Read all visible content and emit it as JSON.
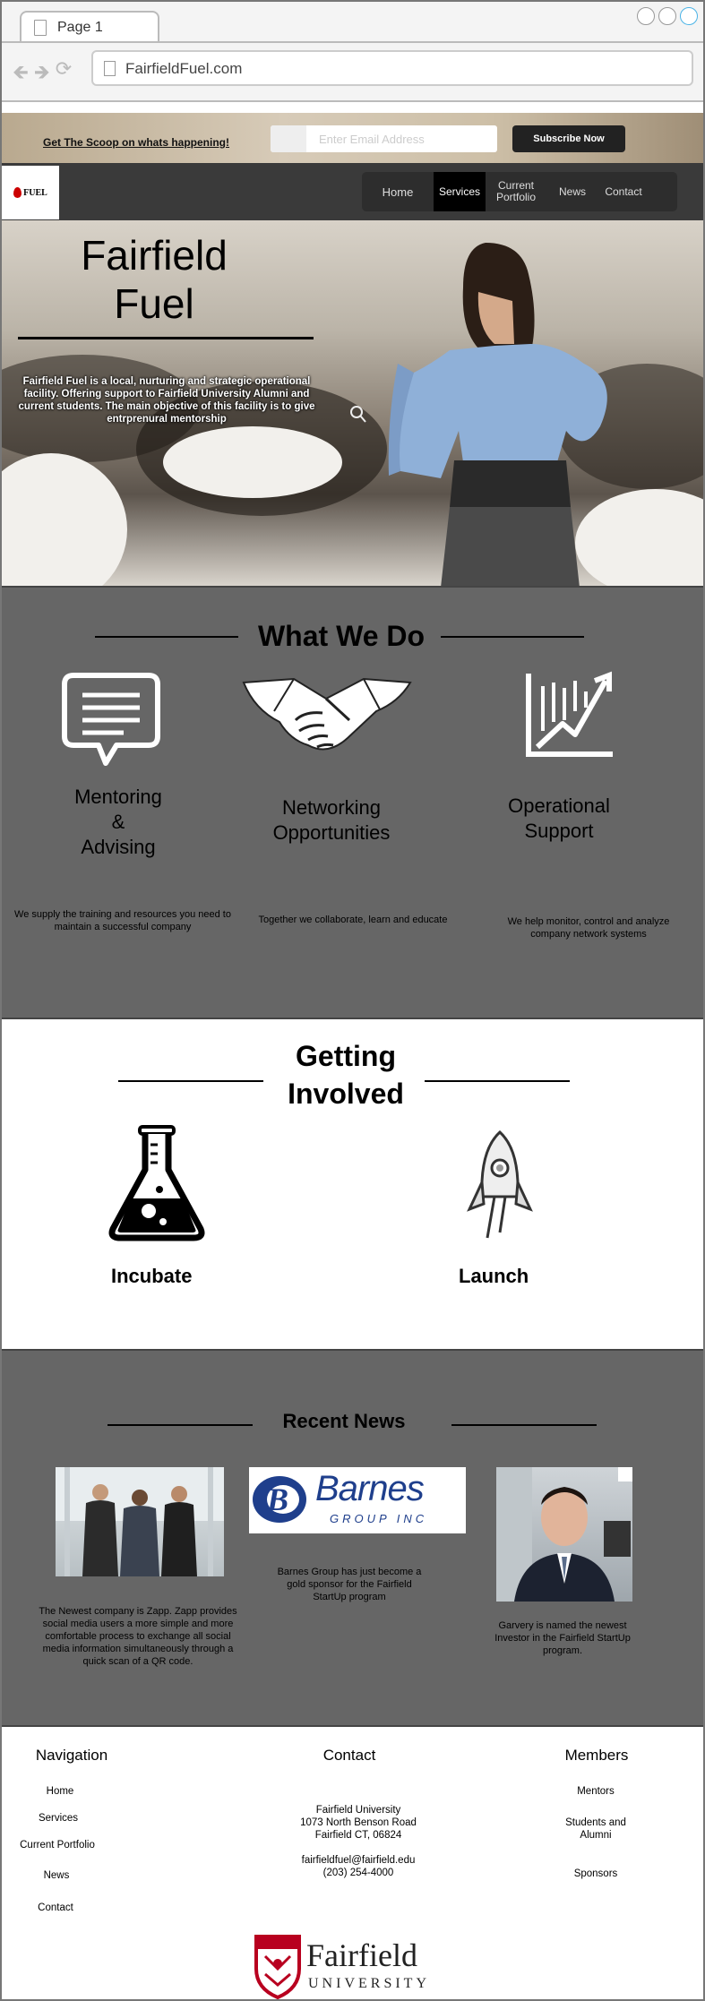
{
  "browser": {
    "tab_label": "Page 1",
    "url": "FairfieldFuel.com"
  },
  "subscribe_bar": {
    "scoop_link": "Get The Scoop on whats happening!",
    "email_placeholder": "Enter Email Address",
    "subscribe_button": "Subscribe Now"
  },
  "navbar": {
    "logo_text": "FUEL",
    "items": [
      {
        "label": "Home"
      },
      {
        "label": "Services"
      },
      {
        "label": "Current Portfolio"
      },
      {
        "label": "News"
      },
      {
        "label": "Contact"
      }
    ],
    "active": "Services"
  },
  "hero": {
    "title_line1": "Fairfield",
    "title_line2": "Fuel",
    "description": "Fairfield Fuel is a local, nurturing and strategic operational facility. Offering support to Fairfield University Alumni and current students. The main objective of this facility is to give entrprenural mentorship"
  },
  "what_we_do": {
    "title": "What We Do",
    "services": [
      {
        "icon": "speech-bubble-icon",
        "title_line1": "Mentoring",
        "title_line2": "&",
        "title_line3": "Advising",
        "description": "We supply the training and resources you need to maintain a successful company"
      },
      {
        "icon": "handshake-icon",
        "title_line1": "Networking",
        "title_line2": "Opportunities",
        "description": "Together we collaborate, learn and  educate"
      },
      {
        "icon": "growth-chart-icon",
        "title_line1": "Operational",
        "title_line2": "Support",
        "description": "We help monitor, control and analyze company network systems"
      }
    ]
  },
  "getting_involved": {
    "title_line1": "Getting",
    "title_line2": "Involved",
    "options": [
      {
        "icon": "flask-icon",
        "label": "Incubate"
      },
      {
        "icon": "rocket-icon",
        "label": "Launch"
      }
    ]
  },
  "recent_news": {
    "title": "Recent News",
    "items": [
      {
        "image": "team-photo",
        "description": "The Newest company is Zapp. Zapp provides social media users a more simple and more comfortable process to exchange all social media information simultaneously through a quick scan of a QR code."
      },
      {
        "image": "barnes-logo",
        "logo_main": "Barnes",
        "logo_sub": "GROUP INC",
        "description": "Barnes Group has just become a gold sponsor for the Fairfield StartUp program"
      },
      {
        "image": "investor-portrait",
        "description": "Garvery is named the newest Investor in the Fairfield StartUp program."
      }
    ]
  },
  "footer": {
    "navigation": {
      "title": "Navigation",
      "links": [
        "Home",
        "Services",
        "Current Portfolio",
        "News",
        "Contact"
      ]
    },
    "contact": {
      "title": "Contact",
      "address_line1": "Fairfield University",
      "address_line2": "1073 North Benson Road",
      "address_line3": "Fairfield CT, 06824",
      "email": "fairfieldfuel@fairfield.edu",
      "phone": "(203) 254-4000"
    },
    "members": {
      "title": "Members",
      "links": [
        "Mentors",
        "Students and Alumni",
        "Sponsors"
      ]
    },
    "university_logo_main": "Fairfield",
    "university_logo_sub": "UNIVERSITY"
  },
  "colors": {
    "section_gray": "#666666",
    "nav_dark": "#3a3a3a",
    "accent_red": "#b8001f",
    "barnes_blue": "#1f3f8c"
  }
}
